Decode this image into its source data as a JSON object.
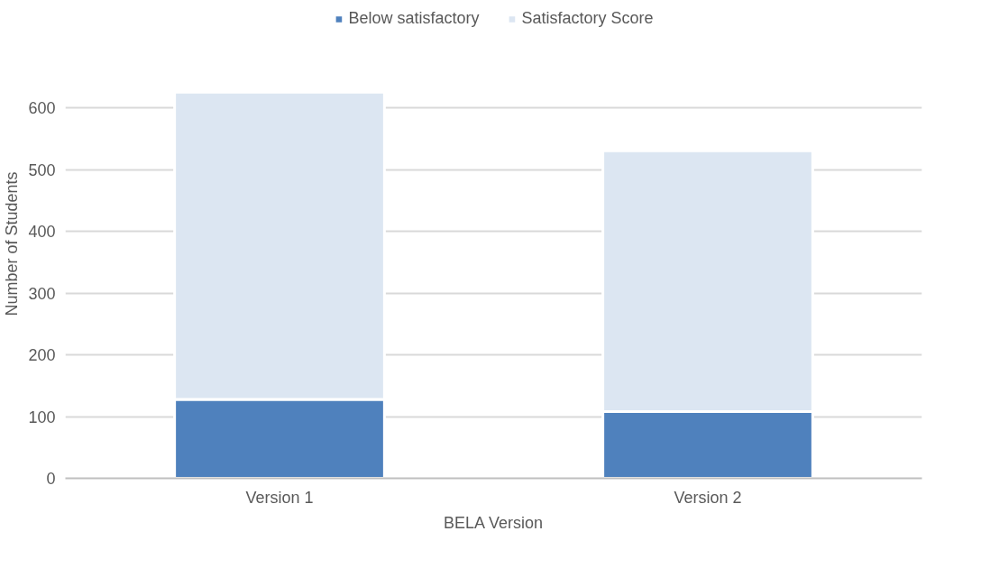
{
  "chart_data": {
    "type": "bar",
    "stacked": true,
    "xlabel": "BELA Version",
    "ylabel": "Number of Students",
    "categories": [
      "Version 1",
      "Version 2"
    ],
    "series": [
      {
        "name": "Below satisfactory",
        "color": "#4f81bd",
        "values": [
          128,
          108
        ]
      },
      {
        "name": "Satisfactory Score",
        "color": "#dce6f2",
        "values": [
          498,
          423
        ]
      }
    ],
    "ylim": [
      0,
      760
    ],
    "yticks": [
      0,
      100,
      200,
      300,
      400,
      500,
      600
    ],
    "grid": "y",
    "legend": "top"
  }
}
